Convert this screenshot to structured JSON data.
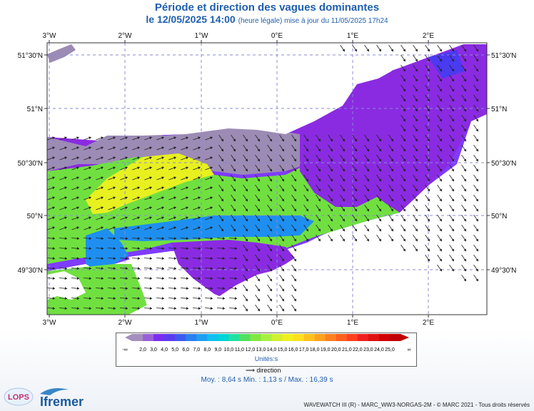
{
  "header": {
    "title": "Période et direction des vagues dominantes",
    "date": "le 12/05/2025 14:00",
    "note": "(heure légale) mise à jour du 11/05/2025 17h24"
  },
  "map": {
    "lon_labels": [
      "3°W",
      "2°W",
      "1°W",
      "0°E",
      "1°E",
      "2°E"
    ],
    "lat_labels": [
      "51°30'N",
      "51°N",
      "50°30'N",
      "50°N",
      "49°30'N"
    ],
    "colors": {
      "land": "#ffffff",
      "grey": "#9c8bb4",
      "purple": "#8a2be2",
      "violet": "#6a2cf0",
      "blue": "#1e8ff0",
      "cyan": "#00c4e6",
      "green": "#70e040",
      "lime": "#a8f040",
      "yellow": "#e8f020",
      "yellow2": "#ffff30"
    }
  },
  "legend": {
    "values": [
      "2,0",
      "3,0",
      "4,0",
      "5,0",
      "6,0",
      "7,0",
      "8,0",
      "9,0",
      "10,0",
      "11,0",
      "12,0",
      "13,0",
      "14,0",
      "15,0",
      "16,0",
      "17,0",
      "18,0",
      "19,0",
      "20,0",
      "21,0",
      "22,0",
      "23,0",
      "24,0",
      "25,0"
    ],
    "low_end": "-∞",
    "high_end": "∞",
    "colors": [
      "#a48ebe",
      "#9a60d8",
      "#7a2cf0",
      "#5a3cf0",
      "#3c5af0",
      "#2a80f0",
      "#1ea0f0",
      "#10c0f0",
      "#00d4d8",
      "#20e0a0",
      "#50e060",
      "#80e840",
      "#a8f040",
      "#d0f030",
      "#f0f020",
      "#ffe020",
      "#ffc020",
      "#ffa020",
      "#ff8020",
      "#ff6020",
      "#ff4020",
      "#f02020",
      "#e01010",
      "#d00000",
      "#c00000"
    ],
    "unit": "Unités:s"
  },
  "direction_label": "direction",
  "stats": "Moy. : 8,64 s    Min. : 1,13 s / Max. : 16,39 s",
  "copyright": "WAVEWATCH III (R) - MARC_WW3-NORGAS-2M - © MARC 2021 - Tous droits réservés",
  "logos": {
    "lops": "LOPS",
    "ifremer": "Ifremer"
  }
}
